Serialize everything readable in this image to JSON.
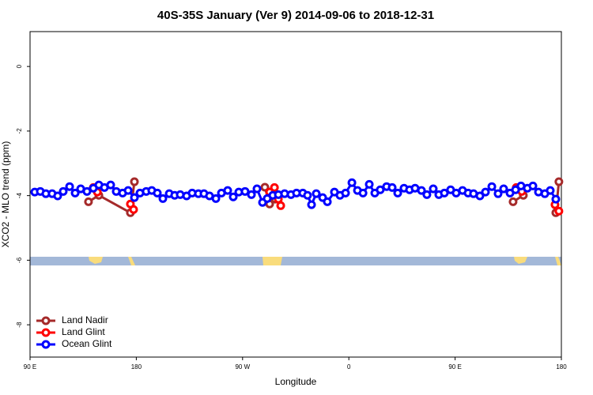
{
  "chart_data": {
    "type": "line",
    "title": "40S-35S January (Ver 9)   2014-09-06 to 2018-12-31",
    "x_label": "Longitude",
    "y_label": "XCO2 - MLO trend (ppm)",
    "xlim": [
      90,
      540
    ],
    "xticks": [
      {
        "value": 90,
        "label": "90 E"
      },
      180,
      {
        "value": 270,
        "label": "90 W"
      },
      {
        "value": 360,
        "label": "0"
      },
      {
        "value": 450,
        "label": "90 E"
      },
      {
        "value": 540,
        "label": "180"
      }
    ],
    "ylim": [
      -9.0,
      1.08
    ],
    "yticks": [
      0,
      -2,
      -4,
      -6,
      -8
    ],
    "legend": "bottomleft",
    "series": [
      {
        "name": "Land Nadir",
        "color": "#a52a2a",
        "x": [
          139.5,
          148.3,
          175.0,
          178.4,
          null,
          288.9,
          292.9,
          297.6,
          null,
          499.1,
          507.8,
          null,
          535.3,
          537.9
        ],
        "values": [
          -4.19,
          -3.99,
          -4.53,
          -3.57,
          null,
          -3.74,
          -4.26,
          -4.11,
          null,
          -4.19,
          -3.99,
          null,
          -4.53,
          -3.57
        ]
      },
      {
        "name": "Land Glint",
        "color": "#ff0000",
        "x": [
          143.6,
          147.0,
          null,
          175.0,
          177.7,
          null,
          292.9,
          297.0,
          300.3,
          302.3,
          null,
          501.8,
          506.5,
          null,
          534.6,
          537.9
        ],
        "values": [
          -3.75,
          -3.89,
          null,
          -4.26,
          -4.43,
          null,
          -3.89,
          -3.75,
          -4.11,
          -4.31,
          null,
          -3.75,
          -3.87,
          null,
          -4.28,
          -4.48
        ]
      },
      {
        "name": "Ocean Glint",
        "color": "#0000ff",
        "x": [
          94.0,
          98.7,
          103.4,
          108.7,
          113.4,
          118.1,
          123.5,
          128.2,
          132.9,
          138.2,
          143.6,
          148.3,
          153.0,
          158.3,
          163.0,
          168.4,
          173.1,
          178.4,
          183.1,
          188.4,
          193.1,
          197.8,
          202.5,
          207.9,
          212.5,
          217.2,
          222.6,
          227.3,
          232.6,
          237.3,
          242.0,
          247.4,
          252.1,
          257.4,
          262.1,
          266.8,
          272.1,
          277.5,
          282.2,
          286.9,
          290.9,
          295.6,
          300.3,
          305.6,
          311.0,
          315.7,
          321.0,
          325.0,
          328.4,
          332.4,
          337.8,
          341.8,
          347.8,
          352.5,
          357.2,
          362.6,
          367.3,
          372.0,
          377.3,
          382.0,
          386.6,
          392.0,
          396.7,
          401.4,
          406.7,
          411.4,
          416.1,
          421.5,
          426.1,
          431.5,
          436.2,
          440.9,
          446.2,
          450.9,
          456.3,
          461.0,
          465.6,
          471.0,
          475.7,
          481.1,
          486.4,
          491.1,
          496.5,
          501.2,
          505.8,
          511.2,
          515.9,
          520.6,
          526.0,
          530.6,
          535.3
        ],
        "values": [
          -3.89,
          -3.87,
          -3.94,
          -3.94,
          -4.01,
          -3.87,
          -3.72,
          -3.92,
          -3.79,
          -3.87,
          -3.77,
          -3.67,
          -3.75,
          -3.67,
          -3.87,
          -3.92,
          -3.84,
          -4.06,
          -3.92,
          -3.87,
          -3.84,
          -3.92,
          -4.09,
          -3.94,
          -3.99,
          -3.97,
          -4.01,
          -3.92,
          -3.94,
          -3.94,
          -4.01,
          -4.09,
          -3.92,
          -3.84,
          -4.04,
          -3.89,
          -3.87,
          -3.97,
          -3.79,
          -4.21,
          -4.09,
          -3.99,
          -3.97,
          -3.94,
          -3.97,
          -3.92,
          -3.92,
          -3.99,
          -4.28,
          -3.94,
          -4.06,
          -4.19,
          -3.89,
          -3.99,
          -3.92,
          -3.6,
          -3.84,
          -3.92,
          -3.65,
          -3.92,
          -3.82,
          -3.72,
          -3.75,
          -3.92,
          -3.77,
          -3.82,
          -3.77,
          -3.84,
          -3.97,
          -3.79,
          -3.97,
          -3.92,
          -3.82,
          -3.92,
          -3.84,
          -3.92,
          -3.94,
          -4.01,
          -3.89,
          -3.72,
          -3.94,
          -3.79,
          -3.92,
          -3.82,
          -3.7,
          -3.77,
          -3.7,
          -3.89,
          -3.94,
          -3.84,
          -4.11
        ]
      }
    ]
  }
}
